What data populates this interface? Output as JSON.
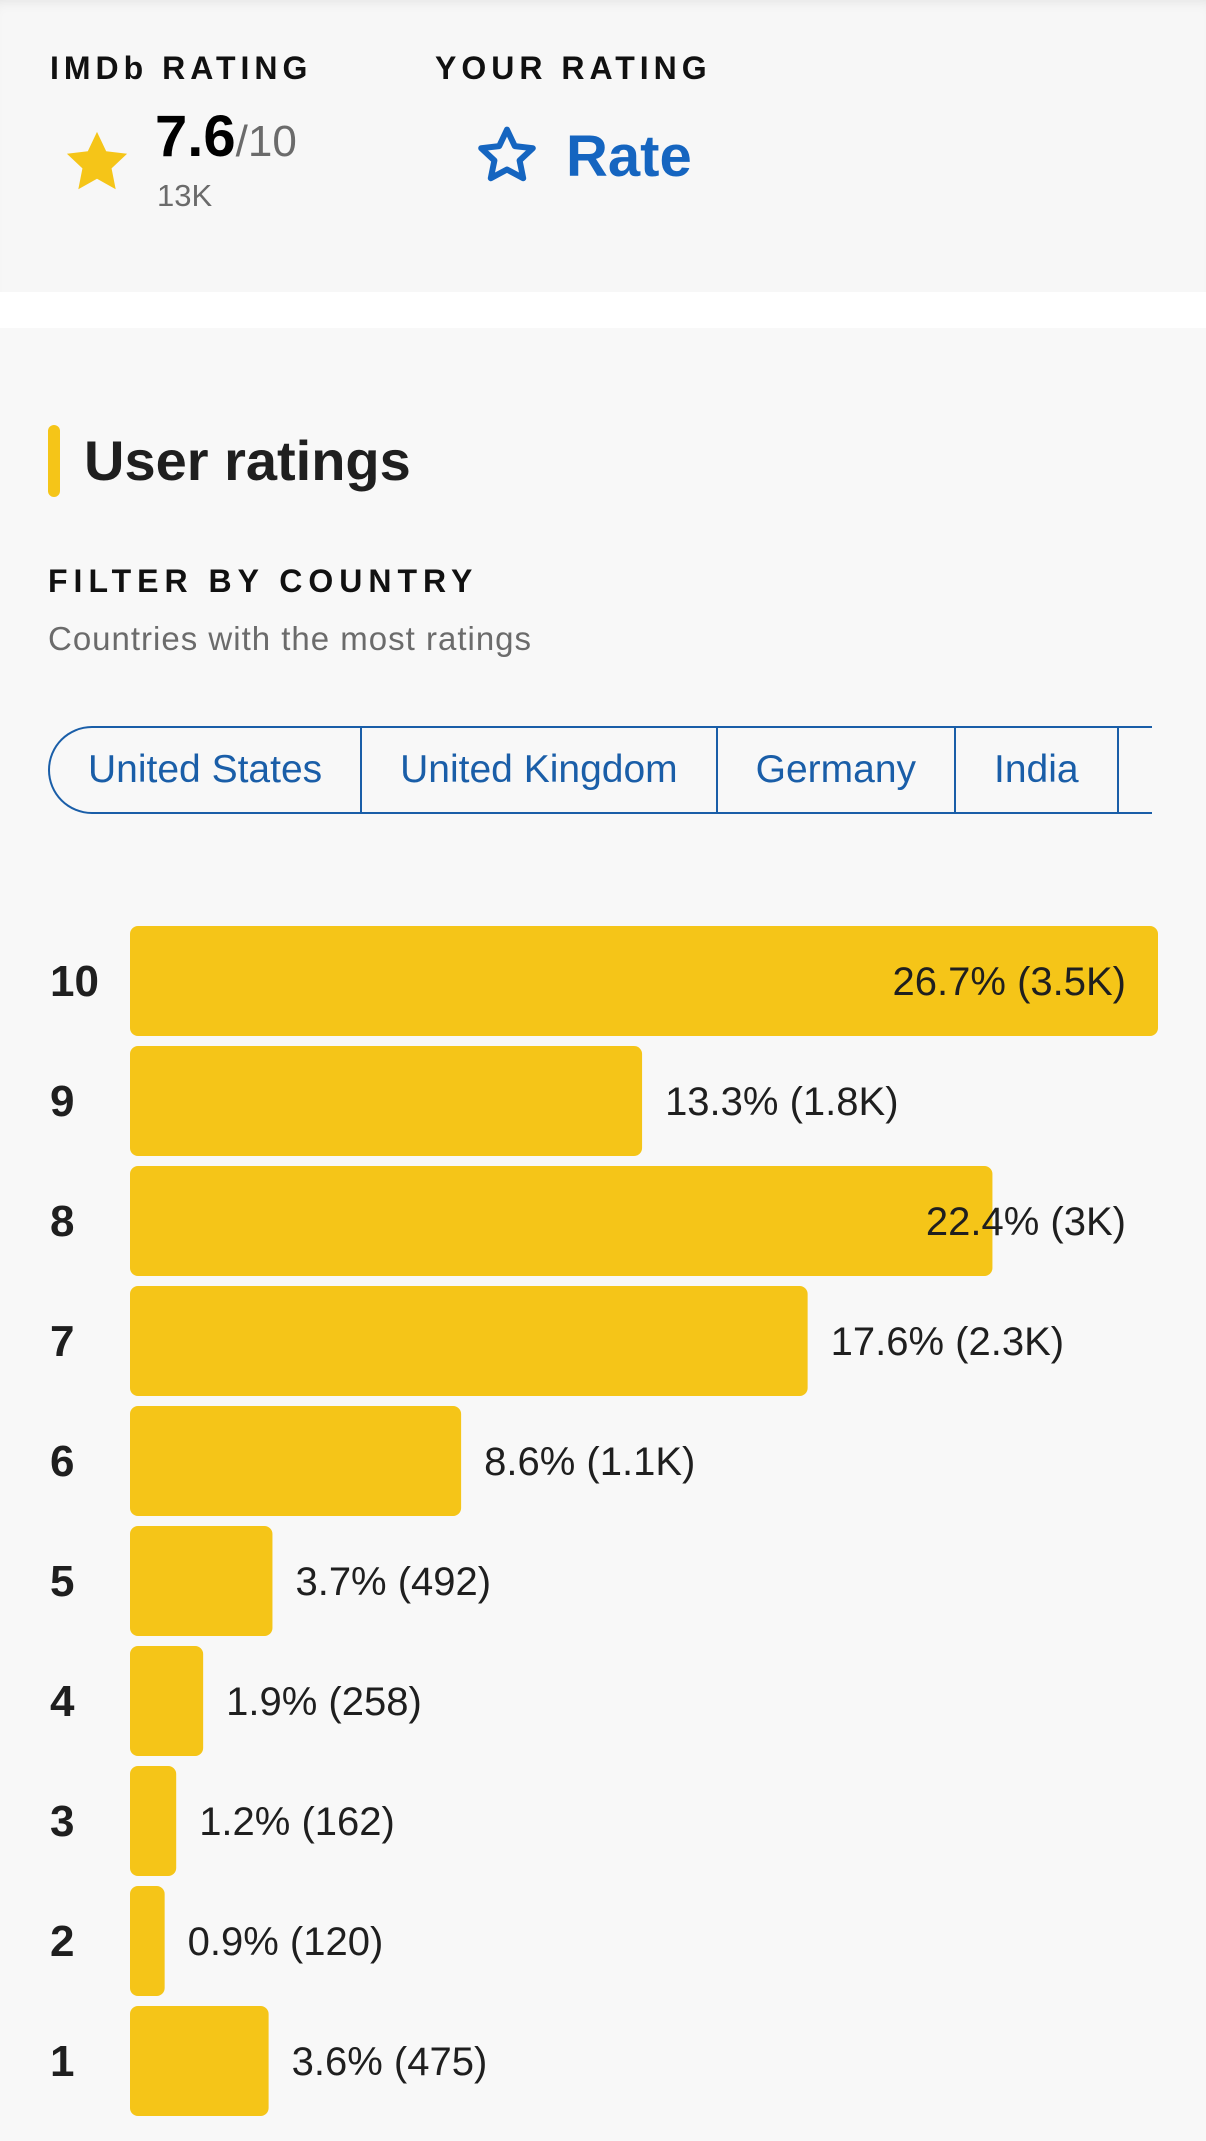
{
  "rating_summary": {
    "imdb_label": "IMDb RATING",
    "score": "7.6",
    "out_of": "/10",
    "votes": "13K",
    "your_rating_label": "YOUR RATING",
    "rate_label": "Rate"
  },
  "user_ratings": {
    "title": "User ratings",
    "filter_label": "FILTER BY COUNTRY",
    "filter_subtitle": "Countries with the most ratings",
    "countries": [
      "United States",
      "United Kingdom",
      "Germany",
      "India"
    ]
  },
  "colors": {
    "accent": "#f5c518",
    "link": "#1565c0"
  },
  "icons": {
    "imdb_rating": "star-filled-icon",
    "rate": "star-outline-icon"
  },
  "chart_data": {
    "type": "bar",
    "orientation": "horizontal",
    "categories": [
      "10",
      "9",
      "8",
      "7",
      "6",
      "5",
      "4",
      "3",
      "2",
      "1"
    ],
    "values": [
      26.7,
      13.3,
      22.4,
      17.6,
      8.6,
      3.7,
      1.9,
      1.2,
      0.9,
      3.6
    ],
    "labels": [
      "26.7% (3.5K)",
      "13.3% (1.8K)",
      "22.4% (3K)",
      "17.6% (2.3K)",
      "8.6% (1.1K)",
      "3.7% (492)",
      "1.9% (258)",
      "1.2% (162)",
      "0.9% (120)",
      "3.6% (475)"
    ],
    "title": "",
    "xlabel": "",
    "ylabel": "",
    "bar_color": "#f5c518"
  }
}
